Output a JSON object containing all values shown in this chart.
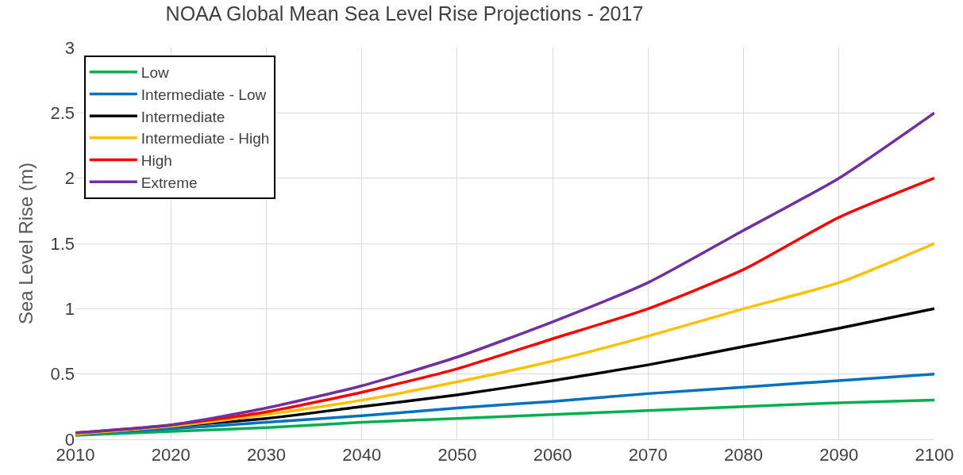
{
  "chart_data": {
    "type": "line",
    "title": "NOAA Global Mean Sea Level Rise Projections - 2017",
    "ylabel": "Sea Level Rise (m)",
    "x": [
      2010,
      2020,
      2030,
      2040,
      2050,
      2060,
      2070,
      2080,
      2090,
      2100
    ],
    "series": [
      {
        "name": "Low",
        "color": "#00b050",
        "values": [
          0.03,
          0.06,
          0.09,
          0.13,
          0.16,
          0.19,
          0.22,
          0.25,
          0.28,
          0.3
        ]
      },
      {
        "name": "Intermediate - Low",
        "color": "#0070c0",
        "values": [
          0.04,
          0.08,
          0.13,
          0.18,
          0.24,
          0.29,
          0.35,
          0.4,
          0.45,
          0.5
        ]
      },
      {
        "name": "Intermediate",
        "color": "#000000",
        "values": [
          0.04,
          0.1,
          0.16,
          0.25,
          0.34,
          0.45,
          0.57,
          0.71,
          0.85,
          1.0
        ]
      },
      {
        "name": "Intermediate - High",
        "color": "#ffc000",
        "values": [
          0.04,
          0.1,
          0.19,
          0.3,
          0.44,
          0.6,
          0.79,
          1.0,
          1.2,
          1.5
        ]
      },
      {
        "name": "High",
        "color": "#ff0000",
        "values": [
          0.05,
          0.11,
          0.21,
          0.36,
          0.54,
          0.77,
          1.0,
          1.3,
          1.7,
          2.0
        ]
      },
      {
        "name": "Extreme",
        "color": "#7030a0",
        "values": [
          0.05,
          0.11,
          0.24,
          0.41,
          0.63,
          0.9,
          1.2,
          1.6,
          2.0,
          2.5
        ]
      }
    ],
    "xlim": [
      2010,
      2100
    ],
    "xticks": [
      2010,
      2020,
      2030,
      2040,
      2050,
      2060,
      2070,
      2080,
      2090,
      2100
    ],
    "ylim": [
      0,
      3
    ],
    "yticks": [
      0,
      0.5,
      1,
      1.5,
      2,
      2.5,
      3
    ],
    "grid": true,
    "legend": "top left",
    "marker": "none",
    "line_style": "solid"
  }
}
